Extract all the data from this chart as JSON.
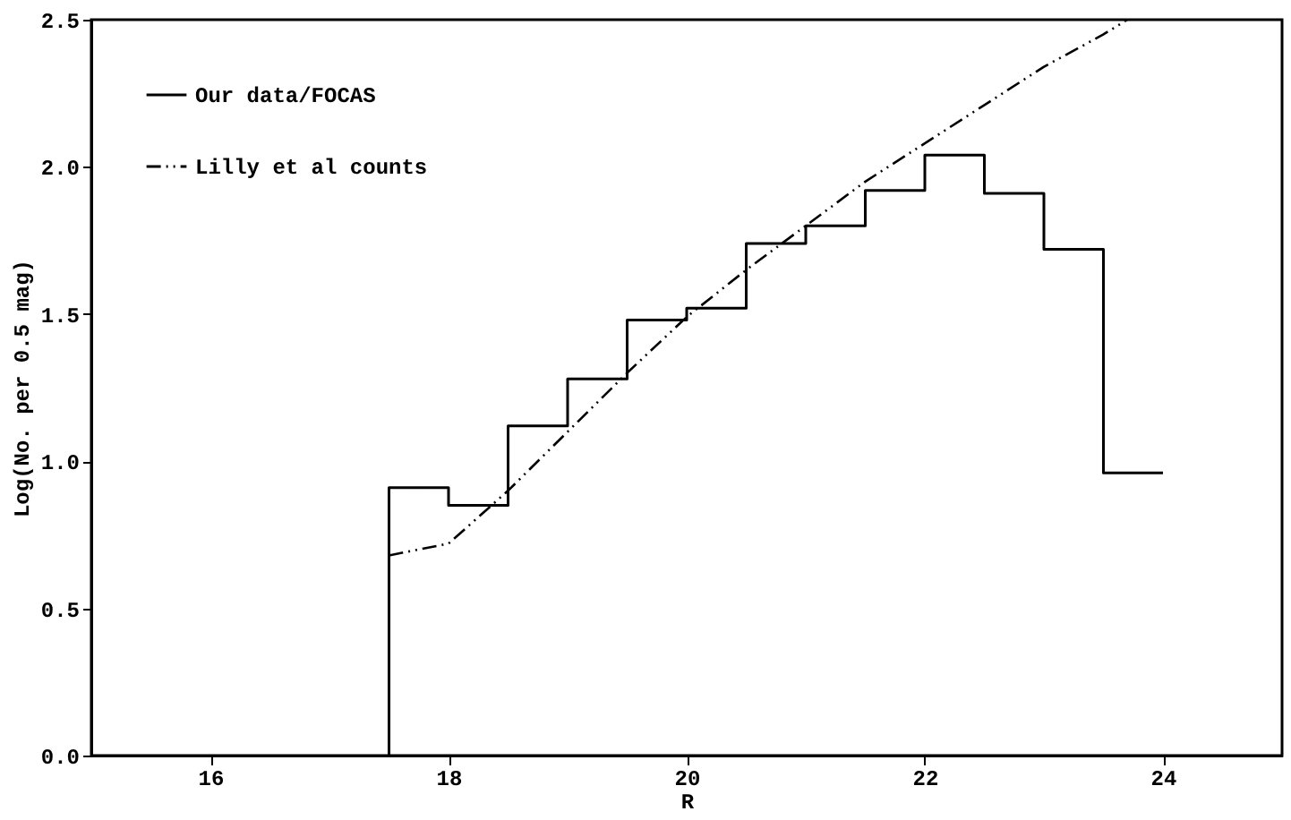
{
  "chart_data": {
    "type": "histogram",
    "xlabel": "R",
    "ylabel": "Log(No. per 0.5 mag)",
    "xlim": [
      15,
      25
    ],
    "xticks": [
      16,
      18,
      20,
      22,
      24
    ],
    "ylim": [
      0,
      2.5
    ],
    "yticks": [
      {
        "value": 0,
        "label": "0.0"
      },
      {
        "value": 0.5,
        "label": "0.5"
      },
      {
        "value": 1,
        "label": "1.0"
      },
      {
        "value": 1.5,
        "label": "1.5"
      },
      {
        "value": 2,
        "label": "2.0"
      },
      {
        "value": 2.5,
        "label": "2.5"
      }
    ],
    "bins": [
      17.5,
      18,
      18.5,
      19,
      19.5,
      20,
      20.5,
      21,
      21.5,
      22,
      22.5,
      23,
      23.5,
      24
    ],
    "legend": "top left",
    "grid": false,
    "series": [
      {
        "name": "Our data/FOCAS",
        "color": "#000000",
        "line_style": "solid",
        "values": [
          0.91,
          0.85,
          1.12,
          1.28,
          1.48,
          1.52,
          1.74,
          1.8,
          1.92,
          2.04,
          1.91,
          1.72,
          0.96
        ]
      },
      {
        "name": "Lilly et al counts",
        "type": "line",
        "color": "#000000",
        "line_style": "dashed",
        "x": [
          17.5,
          18,
          18.5,
          19,
          19.5,
          20,
          20.5,
          21,
          21.5,
          22,
          22.5,
          23,
          23.5,
          23.7
        ],
        "values": [
          0.68,
          0.72,
          0.9,
          1.1,
          1.3,
          1.49,
          1.65,
          1.8,
          1.95,
          2.08,
          2.21,
          2.34,
          2.45,
          2.5
        ]
      }
    ]
  }
}
